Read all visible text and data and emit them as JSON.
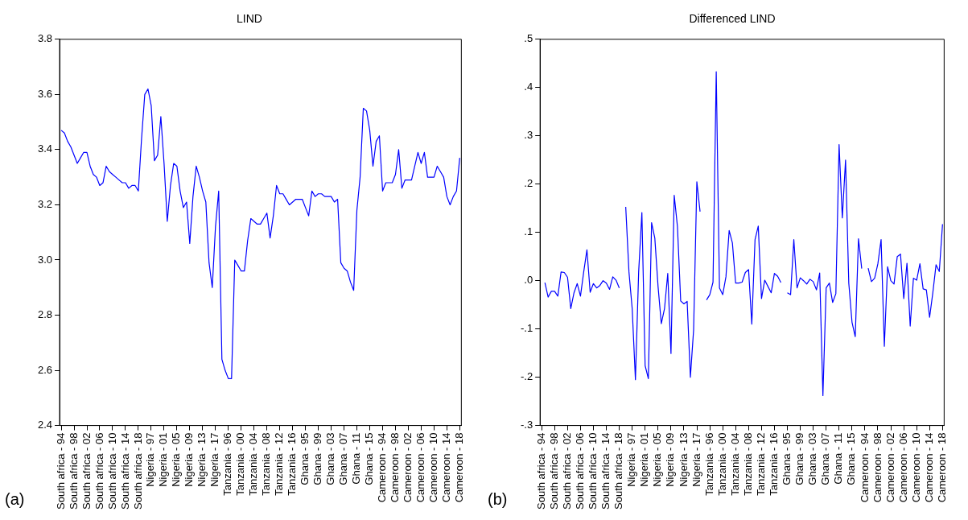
{
  "chart_data": [
    {
      "type": "line",
      "title": "LIND",
      "color": "#0000ff",
      "annotations": [
        "(a)"
      ],
      "categories": [
        "South africa - 94",
        null,
        null,
        null,
        "South africa - 98",
        null,
        null,
        null,
        "South africa - 02",
        null,
        null,
        null,
        "South africa - 06",
        null,
        null,
        null,
        "South africa - 10",
        null,
        null,
        null,
        "South africa - 14",
        null,
        null,
        null,
        "South africa - 18",
        null,
        null,
        null,
        "Nigeria - 97",
        null,
        null,
        null,
        "Nigeria - 01",
        null,
        null,
        null,
        "Nigeria - 05",
        null,
        null,
        null,
        "Nigeria - 09",
        null,
        null,
        null,
        "Nigeria - 13",
        null,
        null,
        null,
        "Nigeria - 17",
        null,
        null,
        null,
        "Tanzania - 96",
        null,
        null,
        null,
        "Tanzania - 00",
        null,
        null,
        null,
        "Tanzania - 04",
        null,
        null,
        null,
        "Tanzania - 08",
        null,
        null,
        null,
        "Tanzania - 12",
        null,
        null,
        null,
        "Tanzania - 16",
        null,
        null,
        null,
        "Ghana - 95",
        null,
        null,
        null,
        "Ghana - 99",
        null,
        null,
        null,
        "Ghana - 03",
        null,
        null,
        null,
        "Ghana - 07",
        null,
        null,
        null,
        "Ghana - 11",
        null,
        null,
        null,
        "Ghana - 15",
        null,
        null,
        null,
        "Cameroon - 94",
        null,
        null,
        null,
        "Cameroon - 98",
        null,
        null,
        null,
        "Cameroon - 02",
        null,
        null,
        null,
        "Cameroon - 06",
        null,
        null,
        null,
        "Cameroon - 10",
        null,
        null,
        null,
        "Cameroon - 14",
        null,
        null,
        null,
        "Cameroon - 18"
      ],
      "values": [
        3.47,
        3.46,
        3.43,
        3.41,
        3.38,
        3.35,
        3.37,
        3.39,
        3.39,
        3.34,
        3.31,
        3.3,
        3.27,
        3.28,
        3.34,
        3.32,
        3.31,
        3.3,
        3.29,
        3.28,
        3.28,
        3.26,
        3.27,
        3.27,
        3.25,
        3.44,
        3.6,
        3.62,
        3.56,
        3.36,
        3.38,
        3.52,
        3.35,
        3.14,
        3.27,
        3.35,
        3.34,
        3.25,
        3.19,
        3.21,
        3.06,
        3.23,
        3.34,
        3.3,
        3.25,
        3.21,
        2.99,
        2.9,
        3.12,
        3.25,
        2.64,
        2.6,
        2.57,
        2.57,
        3.0,
        2.98,
        2.96,
        2.96,
        3.07,
        3.15,
        3.14,
        3.13,
        3.13,
        3.15,
        3.17,
        3.08,
        3.16,
        3.27,
        3.24,
        3.24,
        3.22,
        3.2,
        3.21,
        3.22,
        3.22,
        3.22,
        3.19,
        3.16,
        3.25,
        3.23,
        3.24,
        3.24,
        3.23,
        3.23,
        3.23,
        3.21,
        3.22,
        2.99,
        2.97,
        2.96,
        2.92,
        2.89,
        3.18,
        3.3,
        3.55,
        3.54,
        3.47,
        3.34,
        3.43,
        3.45,
        3.25,
        3.28,
        3.28,
        3.28,
        3.31,
        3.4,
        3.26,
        3.29,
        3.29,
        3.29,
        3.34,
        3.39,
        3.35,
        3.39,
        3.3,
        3.3,
        3.3,
        3.34,
        3.32,
        3.3,
        3.23,
        3.2,
        3.23,
        3.25,
        3.37
      ],
      "ylim": [
        2.4,
        3.8
      ],
      "yticks": [
        {
          "value": 2.4,
          "label": "2.4"
        },
        2.6,
        2.8,
        {
          "value": 3,
          "label": "3.0"
        },
        3.2,
        3.4,
        3.6,
        3.8
      ],
      "grid": false
    },
    {
      "type": "line",
      "title": "Differenced LIND",
      "color": "#0000ff",
      "annotations": [
        "(b)"
      ],
      "categories": [
        "South africa - 94",
        null,
        null,
        null,
        "South africa - 98",
        null,
        null,
        null,
        "South africa - 02",
        null,
        null,
        null,
        "South africa - 06",
        null,
        null,
        null,
        "South africa - 10",
        null,
        null,
        null,
        "South africa - 14",
        null,
        null,
        null,
        "South africa - 18",
        null,
        null,
        null,
        "Nigeria - 97",
        null,
        null,
        null,
        "Nigeria - 01",
        null,
        null,
        null,
        "Nigeria - 05",
        null,
        null,
        null,
        "Nigeria - 09",
        null,
        null,
        null,
        "Nigeria - 13",
        null,
        null,
        null,
        "Nigeria - 17",
        null,
        null,
        null,
        "Tanzania - 96",
        null,
        null,
        null,
        "Tanzania - 00",
        null,
        null,
        null,
        "Tanzania - 04",
        null,
        null,
        null,
        "Tanzania - 08",
        null,
        null,
        null,
        "Tanzania - 12",
        null,
        null,
        null,
        "Tanzania - 16",
        null,
        null,
        null,
        "Ghana - 95",
        null,
        null,
        null,
        "Ghana - 99",
        null,
        null,
        null,
        "Ghana - 03",
        null,
        null,
        null,
        "Ghana - 07",
        null,
        null,
        null,
        "Ghana - 11",
        null,
        null,
        null,
        "Ghana - 15",
        null,
        null,
        null,
        "Cameroon - 94",
        null,
        null,
        null,
        "Cameroon - 98",
        null,
        null,
        null,
        "Cameroon - 02",
        null,
        null,
        null,
        "Cameroon - 06",
        null,
        null,
        null,
        "Cameroon - 10",
        null,
        null,
        null,
        "Cameroon - 14",
        null,
        null,
        null,
        "Cameroon - 18"
      ],
      "values": [
        null,
        -0.004,
        -0.034,
        -0.022,
        -0.022,
        -0.032,
        0.018,
        0.017,
        0.007,
        -0.058,
        -0.025,
        -0.006,
        -0.032,
        0.018,
        0.064,
        -0.024,
        -0.006,
        -0.015,
        -0.01,
        0,
        -0.005,
        -0.018,
        0.008,
        0.001,
        -0.015,
        null,
        0.153,
        0.018,
        -0.058,
        -0.205,
        0.018,
        0.141,
        -0.176,
        -0.203,
        0.12,
        0.088,
        -0.012,
        -0.089,
        -0.058,
        0.015,
        -0.151,
        0.177,
        0.112,
        -0.042,
        -0.048,
        -0.043,
        -0.2,
        -0.102,
        0.205,
        0.143,
        null,
        -0.04,
        -0.029,
        -0.003,
        0.433,
        -0.015,
        -0.029,
        0.008,
        0.104,
        0.078,
        -0.005,
        -0.005,
        -0.003,
        0.017,
        0.023,
        -0.09,
        0.085,
        0.113,
        -0.037,
        0.001,
        -0.012,
        -0.025,
        0.015,
        0.009,
        -0.004,
        null,
        -0.025,
        -0.029,
        0.085,
        -0.015,
        0.006,
        0,
        -0.007,
        0.003,
        -0.002,
        -0.019,
        0.016,
        -0.238,
        -0.015,
        -0.005,
        -0.045,
        -0.027,
        0.282,
        0.13,
        0.25,
        -0.005,
        -0.086,
        -0.116,
        0.087,
        0.025,
        null,
        0.026,
        -0.002,
        0.005,
        0.035,
        0.085,
        -0.136,
        0.029,
        0,
        -0.007,
        0.05,
        0.055,
        -0.037,
        0.036,
        -0.094,
        0.005,
        0.001,
        0.035,
        -0.017,
        -0.019,
        -0.076,
        -0.025,
        0.033,
        0.019,
        0.117
      ],
      "ylim": [
        -0.3,
        0.5
      ],
      "yticks": [
        {
          "value": -0.3,
          "label": "-.3"
        },
        {
          "value": -0.2,
          "label": "-.2"
        },
        {
          "value": -0.1,
          "label": "-.1"
        },
        {
          "value": 0,
          "label": ".0"
        },
        {
          "value": 0.1,
          "label": ".1"
        },
        {
          "value": 0.2,
          "label": ".2"
        },
        {
          "value": 0.3,
          "label": ".3"
        },
        {
          "value": 0.4,
          "label": ".4"
        },
        {
          "value": 0.5,
          "label": ".5"
        }
      ],
      "grid": false
    }
  ]
}
